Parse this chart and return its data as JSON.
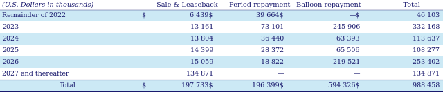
{
  "title_italic": "(U.S. Dollars in thousands)",
  "col_headers": [
    "Sale & Leaseback",
    "Period repayment",
    "Balloon repayment",
    "   Total"
  ],
  "rows": [
    {
      "label": "Remainder of 2022",
      "dollar_sign": "$",
      "col1": "6 439$",
      "col2": "39 664$",
      "col3": "—$",
      "col4": "46 103",
      "shaded": true
    },
    {
      "label": "2023",
      "dollar_sign": "",
      "col1": "13 161",
      "col2": "73 101",
      "col3": "245 906",
      "col4": "332 168",
      "shaded": false
    },
    {
      "label": "2024",
      "dollar_sign": "",
      "col1": "13 804",
      "col2": "36 440",
      "col3": "63 393",
      "col4": "113 637",
      "shaded": true
    },
    {
      "label": "2025",
      "dollar_sign": "",
      "col1": "14 399",
      "col2": "28 372",
      "col3": "65 506",
      "col4": "108 277",
      "shaded": false
    },
    {
      "label": "2026",
      "dollar_sign": "",
      "col1": "15 059",
      "col2": "18 822",
      "col3": "219 521",
      "col4": "253 402",
      "shaded": true
    },
    {
      "label": "2027 and thereafter",
      "dollar_sign": "",
      "col1": "134 871",
      "col2": "—",
      "col3": "—",
      "col4": "134 871",
      "shaded": false
    }
  ],
  "total_row": {
    "label": "Total",
    "dollar_sign": "$",
    "col1": "197 733$",
    "col2": "196 399$",
    "col3": "594 326$",
    "col4": "988 458",
    "shaded": true
  },
  "shade_color": "#cce9f5",
  "bg_color": "#ffffff",
  "text_color": "#1a1a6e",
  "border_color": "#1a1a6e",
  "font_size": 6.8,
  "header_font_size": 7.0
}
